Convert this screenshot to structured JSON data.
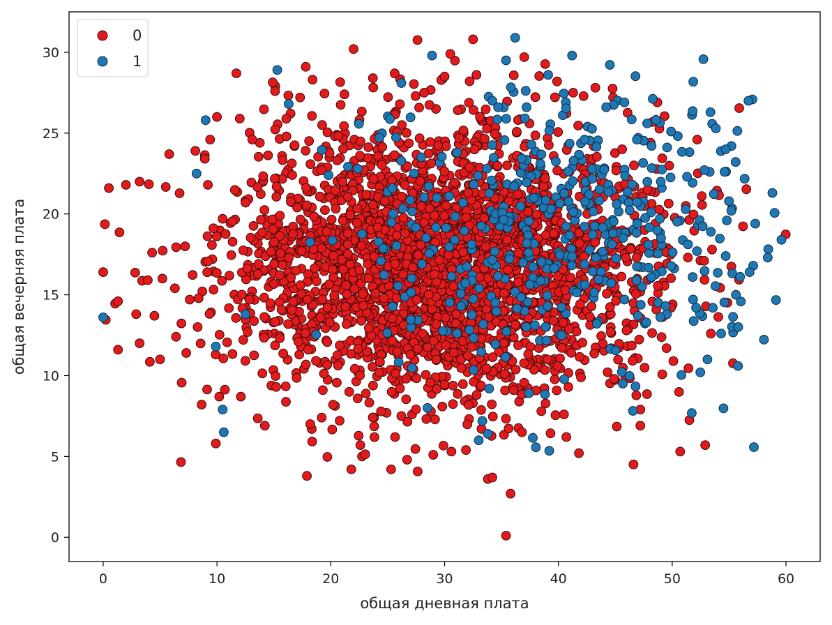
{
  "chart_data": {
    "type": "scatter",
    "xlabel": "общая дневная плата",
    "ylabel": "общая вечерняя плата",
    "xlim": [
      -3,
      63
    ],
    "ylim": [
      -1.5,
      32.5
    ],
    "xticks": [
      0,
      10,
      20,
      30,
      40,
      50,
      60
    ],
    "yticks": [
      0,
      5,
      10,
      15,
      20,
      25,
      30
    ],
    "grid": false,
    "legend": "top-left",
    "series": [
      {
        "name": "0",
        "color": "#e31a1c",
        "edge": "#3a0a0a",
        "approx_count": 2850,
        "distribution": {
          "x_mean": 29.8,
          "x_sd": 8.8,
          "y_mean": 17.0,
          "y_sd": 4.2
        },
        "points": [
          [
            0.0,
            16.4
          ],
          [
            0.5,
            21.6
          ],
          [
            1.3,
            14.6
          ],
          [
            1.3,
            11.6
          ],
          [
            2.0,
            21.8
          ],
          [
            3.2,
            22.0
          ],
          [
            2.9,
            13.8
          ],
          [
            3.2,
            12.0
          ],
          [
            4.3,
            17.6
          ],
          [
            4.5,
            13.7
          ],
          [
            5.0,
            11.0
          ],
          [
            5.2,
            16.0
          ],
          [
            5.8,
            23.7
          ],
          [
            6.3,
            15.4
          ],
          [
            6.4,
            12.4
          ],
          [
            7.2,
            18.0
          ],
          [
            7.3,
            11.4
          ],
          [
            7.6,
            14.7
          ],
          [
            8.1,
            23.9
          ],
          [
            8.3,
            13.0
          ],
          [
            9.2,
            21.8
          ],
          [
            9.4,
            24.6
          ],
          [
            10.0,
            26.0
          ],
          [
            10.2,
            8.7
          ],
          [
            9.9,
            5.8
          ],
          [
            11.7,
            28.7
          ],
          [
            12.0,
            25.9
          ],
          [
            12.1,
            8.7
          ],
          [
            13.1,
            24.6
          ],
          [
            14.2,
            6.9
          ],
          [
            15.1,
            27.6
          ],
          [
            15.2,
            9.3
          ],
          [
            16.1,
            24.8
          ],
          [
            17.3,
            27.2
          ],
          [
            17.8,
            29.1
          ],
          [
            18.2,
            7.0
          ],
          [
            17.9,
            3.8
          ],
          [
            18.4,
            28.3
          ],
          [
            19.2,
            7.4
          ],
          [
            19.3,
            9.1
          ],
          [
            20.2,
            8.2
          ],
          [
            21.2,
            27.4
          ],
          [
            22.0,
            30.2
          ],
          [
            21.8,
            4.2
          ],
          [
            22.6,
            5.7
          ],
          [
            23.7,
            28.4
          ],
          [
            25.3,
            4.2
          ],
          [
            26.2,
            7.5
          ],
          [
            26.7,
            4.8
          ],
          [
            28.2,
            27.5
          ],
          [
            29.0,
            5.1
          ],
          [
            30.0,
            28.5
          ],
          [
            30.5,
            29.9
          ],
          [
            30.6,
            5.3
          ],
          [
            32.5,
            30.8
          ],
          [
            32.8,
            28.6
          ],
          [
            33.8,
            3.6
          ],
          [
            34.2,
            3.7
          ],
          [
            35.4,
            0.1
          ],
          [
            35.8,
            2.7
          ],
          [
            37.0,
            29.7
          ],
          [
            36.8,
            6.5
          ],
          [
            38.5,
            7.8
          ],
          [
            40.7,
            6.2
          ],
          [
            41.8,
            5.2
          ],
          [
            41.3,
            27.5
          ],
          [
            43.1,
            24.2
          ],
          [
            44.9,
            9.8
          ],
          [
            45.6,
            24.0
          ],
          [
            46.6,
            4.5
          ],
          [
            47.2,
            7.9
          ],
          [
            47.2,
            6.9
          ],
          [
            48.1,
            24.4
          ],
          [
            48.7,
            26.9
          ],
          [
            49.5,
            11.7
          ],
          [
            49.9,
            14.2
          ],
          [
            50.1,
            10.9
          ],
          [
            50.7,
            5.3
          ],
          [
            51.2,
            20.5
          ],
          [
            52.2,
            24.6
          ],
          [
            52.6,
            21.1
          ],
          [
            52.8,
            17.1
          ],
          [
            52.9,
            5.7
          ],
          [
            53.5,
            17.8
          ],
          [
            53.4,
            12.6
          ]
        ]
      },
      {
        "name": "1",
        "color": "#1f77b4",
        "edge": "#0b2a44",
        "approx_count": 480,
        "distribution": {
          "x_mean": 41.0,
          "x_sd": 9.5,
          "y_mean": 18.8,
          "y_sd": 4.5
        },
        "points": [
          [
            0.0,
            13.6
          ],
          [
            8.2,
            22.5
          ],
          [
            9.0,
            25.8
          ],
          [
            9.9,
            11.8
          ],
          [
            10.5,
            7.9
          ],
          [
            10.6,
            6.5
          ],
          [
            12.5,
            13.8
          ],
          [
            15.3,
            28.9
          ],
          [
            16.3,
            26.8
          ],
          [
            19.8,
            22.4
          ],
          [
            26.2,
            28.1
          ],
          [
            28.9,
            29.8
          ],
          [
            28.5,
            8.0
          ],
          [
            33.0,
            6.0
          ],
          [
            33.8,
            6.4
          ],
          [
            35.4,
            29.5
          ],
          [
            36.2,
            30.9
          ],
          [
            37.2,
            26.6
          ],
          [
            39.1,
            28.6
          ],
          [
            41.2,
            29.8
          ],
          [
            42.3,
            24.6
          ],
          [
            44.2,
            26.6
          ],
          [
            45.8,
            26.9
          ],
          [
            46.9,
            24.6
          ],
          [
            47.8,
            25.6
          ],
          [
            49.0,
            22.0
          ],
          [
            49.9,
            25.1
          ],
          [
            51.3,
            22.3
          ],
          [
            51.8,
            16.1
          ],
          [
            52.1,
            14.2
          ],
          [
            53.1,
            11.0
          ],
          [
            53.4,
            18.9
          ],
          [
            54.3,
            12.6
          ],
          [
            54.6,
            22.6
          ],
          [
            54.7,
            24.0
          ],
          [
            54.8,
            19.6
          ],
          [
            54.7,
            17.4
          ],
          [
            55.2,
            20.2
          ],
          [
            55.6,
            15.0
          ],
          [
            55.8,
            13.0
          ],
          [
            56.7,
            27.0
          ],
          [
            56.8,
            16.4
          ],
          [
            57.3,
            19.4
          ],
          [
            58.4,
            17.3
          ],
          [
            58.8,
            21.3
          ],
          [
            59.6,
            18.4
          ]
        ]
      }
    ]
  }
}
